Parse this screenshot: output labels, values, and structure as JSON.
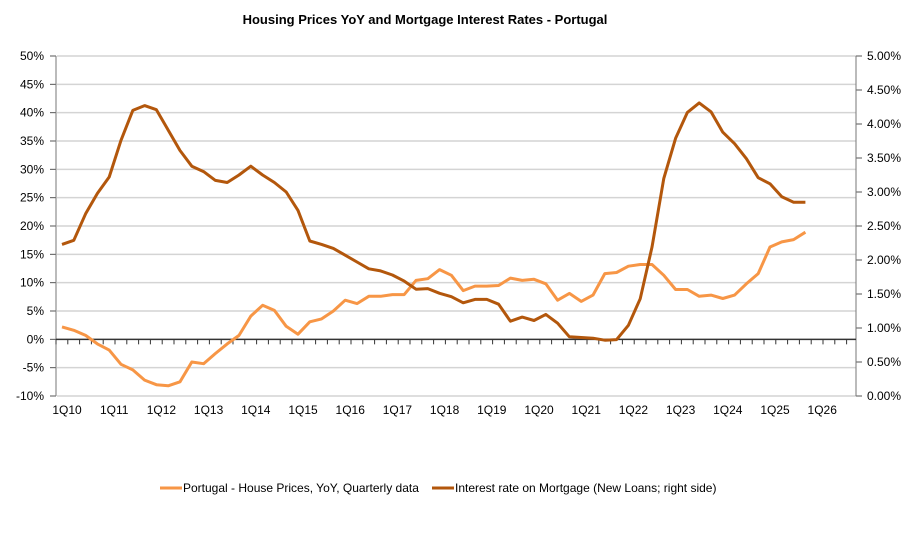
{
  "chart_data": {
    "type": "line",
    "title": "Housing Prices YoY and Mortgage Interest Rates -  Portugal",
    "x": [
      "1Q10",
      "2Q10",
      "3Q10",
      "4Q10",
      "1Q11",
      "2Q11",
      "3Q11",
      "4Q11",
      "1Q12",
      "2Q12",
      "3Q12",
      "4Q12",
      "1Q13",
      "2Q13",
      "3Q13",
      "4Q13",
      "1Q14",
      "2Q14",
      "3Q14",
      "4Q14",
      "1Q15",
      "2Q15",
      "3Q15",
      "4Q15",
      "1Q16",
      "2Q16",
      "3Q16",
      "4Q16",
      "1Q17",
      "2Q17",
      "3Q17",
      "4Q17",
      "1Q18",
      "2Q18",
      "3Q18",
      "4Q18",
      "1Q19",
      "2Q19",
      "3Q19",
      "4Q19",
      "1Q20",
      "2Q20",
      "3Q20",
      "4Q20",
      "1Q21",
      "2Q21",
      "3Q21",
      "4Q21",
      "1Q22",
      "2Q22",
      "3Q22",
      "4Q22",
      "1Q23",
      "2Q23",
      "3Q23",
      "4Q23",
      "1Q24",
      "2Q24",
      "3Q24",
      "4Q24",
      "1Q25",
      "2Q25",
      "3Q25",
      "4Q25"
    ],
    "x_tick_labels": [
      "1Q10",
      "1Q11",
      "1Q12",
      "1Q13",
      "1Q14",
      "1Q15",
      "1Q16",
      "1Q17",
      "1Q18",
      "1Q19",
      "1Q20",
      "1Q21",
      "1Q22",
      "1Q23",
      "1Q24",
      "1Q25",
      "1Q26"
    ],
    "y_left": {
      "min": -10,
      "max": 50,
      "tick_labels": [
        "-10%",
        "-5%",
        "0%",
        "5%",
        "10%",
        "15%",
        "20%",
        "25%",
        "30%",
        "35%",
        "40%",
        "45%",
        "50%"
      ]
    },
    "y_right": {
      "min": 0,
      "max": 5,
      "tick_labels": [
        "0.00%",
        "0.50%",
        "1.00%",
        "1.50%",
        "2.00%",
        "2.50%",
        "3.00%",
        "3.50%",
        "4.00%",
        "4.50%",
        "5.00%"
      ]
    },
    "grid": true,
    "legend_position": "bottom",
    "series": [
      {
        "name": "Portugal - House Prices, YoY, Quarterly data",
        "axis": "left",
        "color": "#F79646",
        "values": [
          2.2,
          1.6,
          0.7,
          -0.8,
          -1.9,
          -4.4,
          -5.4,
          -7.2,
          -8.0,
          -8.2,
          -7.5,
          -4.0,
          -4.3,
          -2.5,
          -0.8,
          0.7,
          4.1,
          6.0,
          5.1,
          2.3,
          0.9,
          3.1,
          3.6,
          5.0,
          6.9,
          6.3,
          7.6,
          7.6,
          7.9,
          7.9,
          10.4,
          10.7,
          12.3,
          11.3,
          8.6,
          9.4,
          9.4,
          9.5,
          10.8,
          10.4,
          10.6,
          9.8,
          6.9,
          8.1,
          6.7,
          7.8,
          11.6,
          11.8,
          12.9,
          13.2,
          13.2,
          11.3,
          8.8,
          8.8,
          7.6,
          7.8,
          7.2,
          7.8,
          9.8,
          11.6,
          16.3,
          17.2,
          17.6,
          18.9
        ]
      },
      {
        "name": "Interest rate on Mortgage (New Loans; right side)",
        "axis": "right",
        "color": "#B3570C",
        "values": [
          2.23,
          2.29,
          2.68,
          2.98,
          3.22,
          3.76,
          4.2,
          4.27,
          4.21,
          3.91,
          3.61,
          3.38,
          3.3,
          3.17,
          3.14,
          3.25,
          3.38,
          3.25,
          3.14,
          3.0,
          2.73,
          2.28,
          2.23,
          2.17,
          2.07,
          1.97,
          1.87,
          1.84,
          1.78,
          1.69,
          1.57,
          1.58,
          1.51,
          1.46,
          1.37,
          1.42,
          1.42,
          1.35,
          1.1,
          1.16,
          1.11,
          1.2,
          1.07,
          0.87,
          0.86,
          0.85,
          0.82,
          0.83,
          1.04,
          1.43,
          2.19,
          3.2,
          3.79,
          4.17,
          4.31,
          4.18,
          3.88,
          3.71,
          3.49,
          3.21,
          3.12,
          2.93,
          2.85,
          2.85
        ]
      }
    ]
  }
}
